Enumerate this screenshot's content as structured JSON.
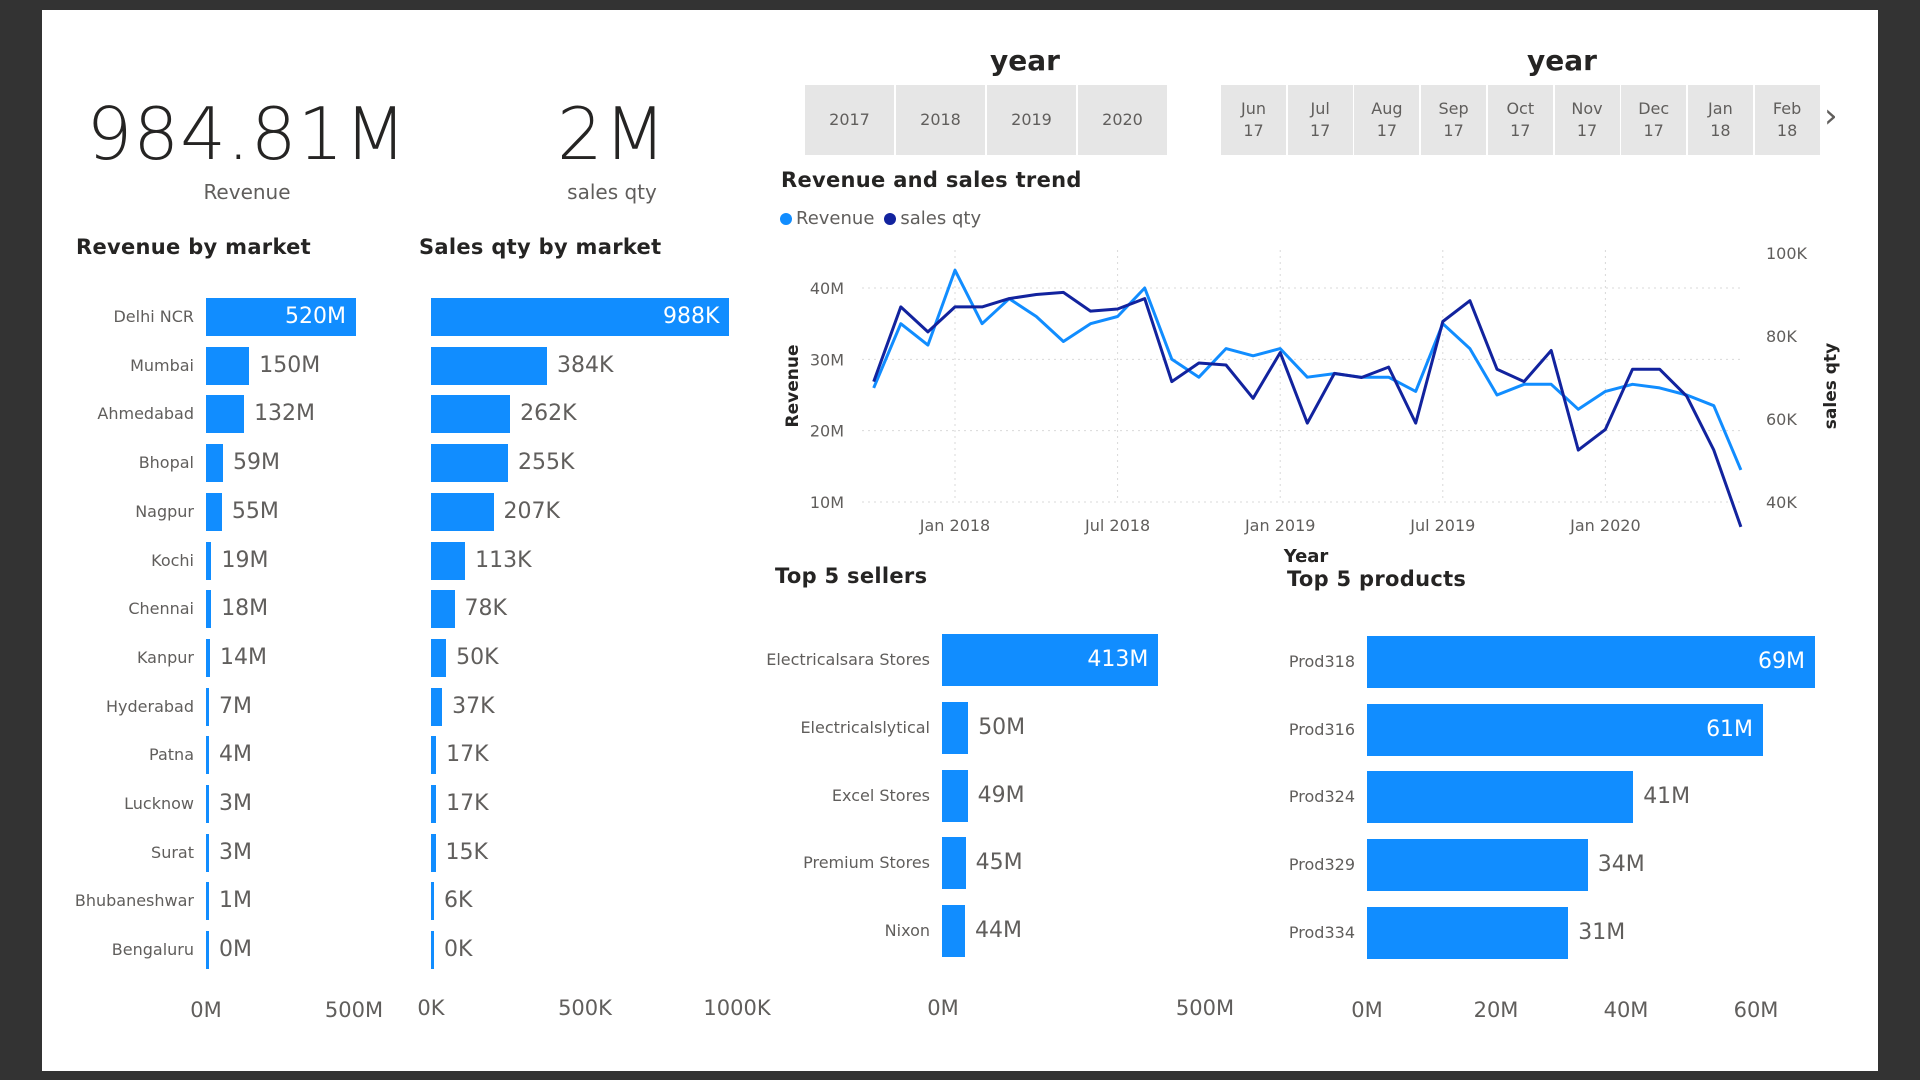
{
  "kpis": [
    {
      "value": "984.81M",
      "label": "Revenue"
    },
    {
      "value": "2M",
      "label": "sales qty"
    }
  ],
  "year_slicer": {
    "title": "year",
    "options": [
      "2017",
      "2018",
      "2019",
      "2020"
    ]
  },
  "month_slicer": {
    "title": "year",
    "options": [
      [
        "Jun",
        "17"
      ],
      [
        "Jul",
        "17"
      ],
      [
        "Aug",
        "17"
      ],
      [
        "Sep",
        "17"
      ],
      [
        "Oct",
        "17"
      ],
      [
        "Nov",
        "17"
      ],
      [
        "Dec",
        "17"
      ],
      [
        "Jan",
        "18"
      ],
      [
        "Feb",
        "18"
      ]
    ],
    "next_icon": "chevron-right-icon"
  },
  "colors": {
    "bar": "#118dff",
    "revenue_line": "#118dff",
    "qty_line": "#12239e"
  },
  "chart_data": [
    {
      "type": "bar",
      "orientation": "horizontal",
      "title": "Revenue by market",
      "categories": [
        "Delhi NCR",
        "Mumbai",
        "Ahmedabad",
        "Bhopal",
        "Nagpur",
        "Kochi",
        "Chennai",
        "Kanpur",
        "Hyderabad",
        "Patna",
        "Lucknow",
        "Surat",
        "Bhubaneshwar",
        "Bengaluru"
      ],
      "values": [
        520,
        150,
        132,
        59,
        55,
        19,
        18,
        14,
        7,
        4,
        3,
        3,
        1,
        0.4
      ],
      "labels": [
        "520M",
        "150M",
        "132M",
        "59M",
        "55M",
        "19M",
        "18M",
        "14M",
        "7M",
        "4M",
        "3M",
        "3M",
        "1M",
        "0M"
      ],
      "xlim": [
        0,
        520
      ],
      "x_ticks": [
        "0M",
        "500M"
      ]
    },
    {
      "type": "bar",
      "orientation": "horizontal",
      "title": "Sales qty by market",
      "categories": [
        "Delhi NCR",
        "Mumbai",
        "Ahmedabad",
        "Bhopal",
        "Nagpur",
        "Kochi",
        "Chennai",
        "Kanpur",
        "Hyderabad",
        "Patna",
        "Lucknow",
        "Surat",
        "Bhubaneshwar",
        "Bengaluru"
      ],
      "values": [
        988,
        384,
        262,
        255,
        207,
        113,
        78,
        50,
        37,
        17,
        17,
        15,
        6,
        0.3
      ],
      "labels": [
        "988K",
        "384K",
        "262K",
        "255K",
        "207K",
        "113K",
        "78K",
        "50K",
        "37K",
        "17K",
        "17K",
        "15K",
        "6K",
        "0K"
      ],
      "xlim": [
        0,
        1000
      ],
      "x_ticks": [
        "0K",
        "500K",
        "1000K"
      ]
    },
    {
      "type": "line",
      "title": "Revenue and sales trend",
      "xlabel": "Year",
      "ylabel": "Revenue",
      "y2label": "sales qty",
      "x_ticks": [
        "Jan 2018",
        "Jul 2018",
        "Jan 2019",
        "Jul 2019",
        "Jan 2020"
      ],
      "y_ticks": [
        "10M",
        "20M",
        "30M",
        "40M"
      ],
      "y2_ticks": [
        "40K",
        "60K",
        "80K",
        "100K"
      ],
      "ylim": [
        10,
        40
      ],
      "y2lim": [
        40,
        100
      ],
      "x": [
        "2017-10",
        "2017-11",
        "2017-12",
        "2018-01",
        "2018-02",
        "2018-03",
        "2018-04",
        "2018-05",
        "2018-06",
        "2018-07",
        "2018-08",
        "2018-09",
        "2018-10",
        "2018-11",
        "2018-12",
        "2019-01",
        "2019-02",
        "2019-03",
        "2019-04",
        "2019-05",
        "2019-06",
        "2019-07",
        "2019-08",
        "2019-09",
        "2019-10",
        "2019-11",
        "2019-12",
        "2020-01",
        "2020-02",
        "2020-03",
        "2020-04",
        "2020-05",
        "2020-06"
      ],
      "series": [
        {
          "name": "Revenue",
          "axis": "left",
          "values": [
            26,
            35,
            32,
            42.5,
            35,
            38.5,
            36,
            32.5,
            35,
            36,
            40,
            30,
            27.5,
            31.5,
            30.5,
            31.5,
            27.5,
            28,
            27.5,
            27.5,
            25.5,
            35,
            31.5,
            25,
            26.5,
            26.5,
            23,
            25.5,
            26.5,
            26,
            25,
            23.5,
            14.5
          ]
        },
        {
          "name": "sales qty",
          "axis": "right",
          "values": [
            69,
            87,
            81,
            87,
            87,
            89,
            90,
            90.5,
            86,
            86.5,
            89,
            69,
            73.5,
            73,
            65,
            76,
            59,
            71,
            70,
            72.5,
            59,
            83.5,
            88.5,
            72,
            69,
            76.5,
            52.5,
            57.5,
            72,
            72,
            65.5,
            52.5,
            34
          ]
        }
      ],
      "legend": "top-left"
    },
    {
      "type": "bar",
      "orientation": "horizontal",
      "title": "Top 5 sellers",
      "categories": [
        "Electricalsara Stores",
        "Electricalslytical",
        "Excel Stores",
        "Premium Stores",
        "Nixon"
      ],
      "values": [
        413,
        50,
        49,
        45,
        44
      ],
      "labels": [
        "413M",
        "50M",
        "49M",
        "45M",
        "44M"
      ],
      "xlim": [
        0,
        500
      ],
      "x_ticks": [
        "0M",
        "500M"
      ]
    },
    {
      "type": "bar",
      "orientation": "horizontal",
      "title": "Top 5 products",
      "categories": [
        "Prod318",
        "Prod316",
        "Prod324",
        "Prod329",
        "Prod334"
      ],
      "values": [
        69,
        61,
        41,
        34,
        31
      ],
      "labels": [
        "69M",
        "61M",
        "41M",
        "34M",
        "31M"
      ],
      "xlim": [
        0,
        69
      ],
      "x_ticks": [
        "0M",
        "20M",
        "40M",
        "60M"
      ]
    }
  ]
}
